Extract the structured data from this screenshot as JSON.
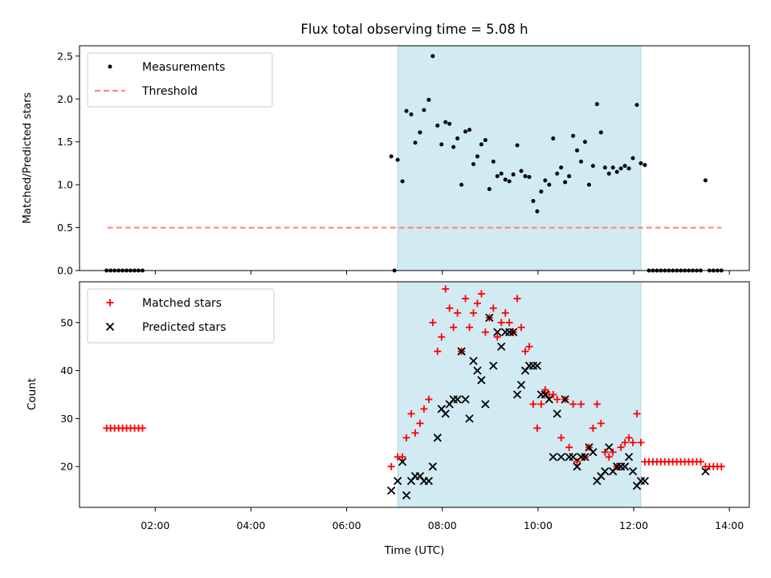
{
  "chart_data": [
    {
      "type": "scatter",
      "panel": "top",
      "title": "Flux total observing time = 5.08 h",
      "ylabel": "Matched/Predicted stars",
      "xlim": [
        "00:25",
        "14:25"
      ],
      "ylim": [
        0,
        2.62
      ],
      "yticks": [
        "0.0",
        "0.5",
        "1.0",
        "1.5",
        "2.0",
        "2.5"
      ],
      "grid": false,
      "legend_position": "upper-left",
      "shaded_interval": {
        "x_start": "07:04",
        "x_end": "12:09",
        "color": "#add8e6"
      },
      "series": [
        {
          "name": "Measurements",
          "marker": "dot",
          "color": "#000000",
          "points": [
            [
              "00:59",
              0
            ],
            [
              "01:04",
              0
            ],
            [
              "01:09",
              0
            ],
            [
              "01:14",
              0
            ],
            [
              "01:19",
              0
            ],
            [
              "01:24",
              0
            ],
            [
              "01:29",
              0
            ],
            [
              "01:34",
              0
            ],
            [
              "01:39",
              0
            ],
            [
              "01:44",
              0
            ],
            [
              "06:56",
              1.33
            ],
            [
              "07:00",
              0
            ],
            [
              "07:04",
              1.29
            ],
            [
              "07:10",
              1.04
            ],
            [
              "07:15",
              1.86
            ],
            [
              "07:21",
              1.82
            ],
            [
              "07:26",
              1.49
            ],
            [
              "07:32",
              1.61
            ],
            [
              "07:37",
              1.87
            ],
            [
              "07:43",
              1.99
            ],
            [
              "07:48",
              2.5
            ],
            [
              "07:54",
              1.69
            ],
            [
              "07:59",
              1.47
            ],
            [
              "08:04",
              1.73
            ],
            [
              "08:09",
              1.71
            ],
            [
              "08:14",
              1.44
            ],
            [
              "08:19",
              1.54
            ],
            [
              "08:24",
              1.0
            ],
            [
              "08:29",
              1.62
            ],
            [
              "08:34",
              1.64
            ],
            [
              "08:39",
              1.24
            ],
            [
              "08:44",
              1.33
            ],
            [
              "08:49",
              1.47
            ],
            [
              "08:54",
              1.52
            ],
            [
              "08:59",
              0.95
            ],
            [
              "09:04",
              1.27
            ],
            [
              "09:09",
              1.1
            ],
            [
              "09:14",
              1.13
            ],
            [
              "09:19",
              1.06
            ],
            [
              "09:24",
              1.04
            ],
            [
              "09:29",
              1.12
            ],
            [
              "09:34",
              1.46
            ],
            [
              "09:39",
              1.16
            ],
            [
              "09:44",
              1.1
            ],
            [
              "09:49",
              1.09
            ],
            [
              "09:54",
              0.81
            ],
            [
              "09:59",
              0.69
            ],
            [
              "10:04",
              0.92
            ],
            [
              "10:09",
              1.05
            ],
            [
              "10:14",
              1.0
            ],
            [
              "10:19",
              1.54
            ],
            [
              "10:24",
              1.13
            ],
            [
              "10:29",
              1.2
            ],
            [
              "10:34",
              1.03
            ],
            [
              "10:39",
              1.1
            ],
            [
              "10:44",
              1.57
            ],
            [
              "10:49",
              1.4
            ],
            [
              "10:54",
              1.27
            ],
            [
              "10:59",
              1.5
            ],
            [
              "11:04",
              1.0
            ],
            [
              "11:09",
              1.22
            ],
            [
              "11:14",
              1.94
            ],
            [
              "11:19",
              1.61
            ],
            [
              "11:24",
              1.2
            ],
            [
              "11:29",
              1.13
            ],
            [
              "11:34",
              1.2
            ],
            [
              "11:39",
              1.15
            ],
            [
              "11:44",
              1.19
            ],
            [
              "11:49",
              1.22
            ],
            [
              "11:54",
              1.19
            ],
            [
              "11:59",
              1.31
            ],
            [
              "12:04",
              1.93
            ],
            [
              "12:09",
              1.25
            ],
            [
              "12:14",
              1.23
            ],
            [
              "12:19",
              0
            ],
            [
              "12:24",
              0
            ],
            [
              "12:29",
              0
            ],
            [
              "12:34",
              0
            ],
            [
              "12:39",
              0
            ],
            [
              "12:44",
              0
            ],
            [
              "12:49",
              0
            ],
            [
              "12:54",
              0
            ],
            [
              "12:59",
              0
            ],
            [
              "13:04",
              0
            ],
            [
              "13:09",
              0
            ],
            [
              "13:14",
              0
            ],
            [
              "13:19",
              0
            ],
            [
              "13:24",
              0
            ],
            [
              "13:30",
              1.05
            ],
            [
              "13:35",
              0
            ],
            [
              "13:40",
              0
            ],
            [
              "13:45",
              0
            ],
            [
              "13:50",
              0
            ]
          ]
        },
        {
          "name": "Threshold",
          "line_style": "dashed",
          "color": "#ff7f7f",
          "points": [
            [
              "01:00",
              0.5
            ],
            [
              "13:50",
              0.5
            ]
          ]
        }
      ]
    },
    {
      "type": "scatter",
      "panel": "bottom",
      "xlabel": "Time (UTC)",
      "ylabel": "Count",
      "xlim": [
        "00:25",
        "14:25"
      ],
      "ylim": [
        11.5,
        58.5
      ],
      "xticks": [
        "02:00",
        "04:00",
        "06:00",
        "08:00",
        "10:00",
        "12:00",
        "14:00"
      ],
      "yticks": [
        "20",
        "30",
        "40",
        "50"
      ],
      "grid": false,
      "legend_position": "upper-left",
      "shaded_interval": {
        "x_start": "07:04",
        "x_end": "12:09",
        "color": "#add8e6"
      },
      "series": [
        {
          "name": "Matched stars",
          "marker": "plus",
          "color": "#ff0000",
          "points": [
            [
              "00:59",
              28
            ],
            [
              "01:04",
              28
            ],
            [
              "01:09",
              28
            ],
            [
              "01:14",
              28
            ],
            [
              "01:19",
              28
            ],
            [
              "01:24",
              28
            ],
            [
              "01:29",
              28
            ],
            [
              "01:34",
              28
            ],
            [
              "01:39",
              28
            ],
            [
              "01:44",
              28
            ],
            [
              "06:56",
              20
            ],
            [
              "07:04",
              22
            ],
            [
              "07:10",
              22
            ],
            [
              "07:15",
              26
            ],
            [
              "07:21",
              31
            ],
            [
              "07:26",
              27
            ],
            [
              "07:32",
              29
            ],
            [
              "07:37",
              32
            ],
            [
              "07:43",
              34
            ],
            [
              "07:48",
              50
            ],
            [
              "07:54",
              44
            ],
            [
              "07:59",
              47
            ],
            [
              "08:04",
              57
            ],
            [
              "08:09",
              53
            ],
            [
              "08:14",
              49
            ],
            [
              "08:19",
              52
            ],
            [
              "08:24",
              44
            ],
            [
              "08:29",
              55
            ],
            [
              "08:34",
              49
            ],
            [
              "08:39",
              52
            ],
            [
              "08:44",
              54
            ],
            [
              "08:49",
              56
            ],
            [
              "08:54",
              48
            ],
            [
              "08:59",
              51
            ],
            [
              "09:04",
              53
            ],
            [
              "09:09",
              47
            ],
            [
              "09:14",
              50
            ],
            [
              "09:19",
              52
            ],
            [
              "09:24",
              50
            ],
            [
              "09:29",
              48
            ],
            [
              "09:34",
              55
            ],
            [
              "09:39",
              49
            ],
            [
              "09:44",
              44
            ],
            [
              "09:49",
              45
            ],
            [
              "09:54",
              33
            ],
            [
              "09:59",
              28
            ],
            [
              "10:04",
              33
            ],
            [
              "10:09",
              36
            ],
            [
              "10:14",
              35
            ],
            [
              "10:19",
              35
            ],
            [
              "10:24",
              34
            ],
            [
              "10:29",
              26
            ],
            [
              "10:34",
              34
            ],
            [
              "10:39",
              24
            ],
            [
              "10:44",
              33
            ],
            [
              "10:49",
              21
            ],
            [
              "10:54",
              33
            ],
            [
              "10:59",
              22
            ],
            [
              "11:04",
              24
            ],
            [
              "11:09",
              28
            ],
            [
              "11:14",
              33
            ],
            [
              "11:19",
              29
            ],
            [
              "11:24",
              23
            ],
            [
              "11:29",
              22
            ],
            [
              "11:34",
              23
            ],
            [
              "11:39",
              20
            ],
            [
              "11:44",
              24
            ],
            [
              "11:49",
              25
            ],
            [
              "11:54",
              26
            ],
            [
              "11:59",
              25
            ],
            [
              "12:04",
              31
            ],
            [
              "12:09",
              25
            ],
            [
              "12:14",
              21
            ],
            [
              "12:19",
              21
            ],
            [
              "12:24",
              21
            ],
            [
              "12:29",
              21
            ],
            [
              "12:34",
              21
            ],
            [
              "12:39",
              21
            ],
            [
              "12:44",
              21
            ],
            [
              "12:49",
              21
            ],
            [
              "12:54",
              21
            ],
            [
              "12:59",
              21
            ],
            [
              "13:04",
              21
            ],
            [
              "13:09",
              21
            ],
            [
              "13:14",
              21
            ],
            [
              "13:19",
              21
            ],
            [
              "13:24",
              21
            ],
            [
              "13:30",
              20
            ],
            [
              "13:35",
              20
            ],
            [
              "13:40",
              20
            ],
            [
              "13:45",
              20
            ],
            [
              "13:50",
              20
            ]
          ]
        },
        {
          "name": "Predicted stars",
          "marker": "x",
          "color": "#000000",
          "points": [
            [
              "06:56",
              15
            ],
            [
              "07:04",
              17
            ],
            [
              "07:10",
              21
            ],
            [
              "07:15",
              14
            ],
            [
              "07:21",
              17
            ],
            [
              "07:26",
              18
            ],
            [
              "07:32",
              18
            ],
            [
              "07:37",
              17
            ],
            [
              "07:43",
              17
            ],
            [
              "07:48",
              20
            ],
            [
              "07:54",
              26
            ],
            [
              "07:59",
              32
            ],
            [
              "08:04",
              31
            ],
            [
              "08:09",
              33
            ],
            [
              "08:14",
              34
            ],
            [
              "08:19",
              34
            ],
            [
              "08:24",
              44
            ],
            [
              "08:29",
              34
            ],
            [
              "08:34",
              30
            ],
            [
              "08:39",
              42
            ],
            [
              "08:44",
              40
            ],
            [
              "08:49",
              38
            ],
            [
              "08:54",
              33
            ],
            [
              "08:59",
              51
            ],
            [
              "09:04",
              41
            ],
            [
              "09:09",
              48
            ],
            [
              "09:14",
              45
            ],
            [
              "09:19",
              48
            ],
            [
              "09:24",
              48
            ],
            [
              "09:29",
              48
            ],
            [
              "09:34",
              35
            ],
            [
              "09:39",
              37
            ],
            [
              "09:44",
              40
            ],
            [
              "09:49",
              41
            ],
            [
              "09:54",
              41
            ],
            [
              "09:59",
              41
            ],
            [
              "10:04",
              35
            ],
            [
              "10:09",
              35
            ],
            [
              "10:14",
              34
            ],
            [
              "10:19",
              22
            ],
            [
              "10:24",
              31
            ],
            [
              "10:29",
              22
            ],
            [
              "10:34",
              34
            ],
            [
              "10:39",
              22
            ],
            [
              "10:44",
              22
            ],
            [
              "10:49",
              20
            ],
            [
              "10:54",
              22
            ],
            [
              "10:59",
              22
            ],
            [
              "11:04",
              24
            ],
            [
              "11:09",
              23
            ],
            [
              "11:14",
              17
            ],
            [
              "11:19",
              18
            ],
            [
              "11:24",
              19
            ],
            [
              "11:29",
              24
            ],
            [
              "11:34",
              19
            ],
            [
              "11:39",
              20
            ],
            [
              "11:44",
              20
            ],
            [
              "11:49",
              20
            ],
            [
              "11:54",
              22
            ],
            [
              "11:59",
              19
            ],
            [
              "12:04",
              16
            ],
            [
              "12:09",
              17
            ],
            [
              "12:14",
              17
            ],
            [
              "13:30",
              19
            ]
          ]
        }
      ]
    }
  ]
}
